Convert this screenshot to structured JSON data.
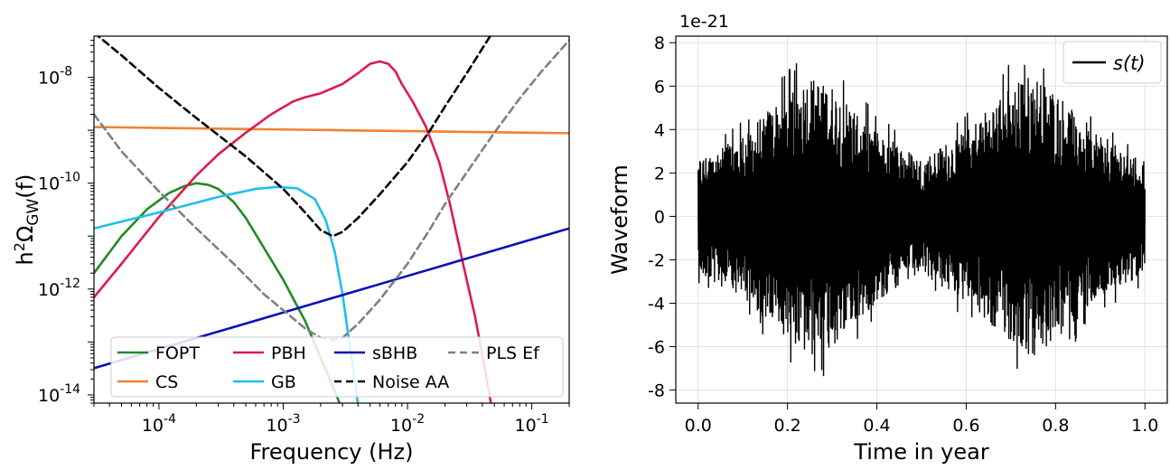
{
  "chart_data": [
    {
      "type": "line",
      "xscale": "log",
      "yscale": "log",
      "xlim": [
        3e-05,
        0.2
      ],
      "ylim": [
        7e-15,
        6e-08
      ],
      "xlabel": "Frequency (Hz)",
      "ylabel_base": "h",
      "ylabel_sup": "2",
      "ylabel_mid": "Ω",
      "ylabel_sub": "GW",
      "ylabel_end": "(f)",
      "grid": false,
      "legend_position": "lower-center",
      "xticks": [
        {
          "value": 0.0001,
          "base": "10",
          "exp": "-4"
        },
        {
          "value": 0.001,
          "base": "10",
          "exp": "-3"
        },
        {
          "value": 0.01,
          "base": "10",
          "exp": "-2"
        },
        {
          "value": 0.1,
          "base": "10",
          "exp": "-1"
        }
      ],
      "yticks": [
        {
          "value": 1e-14,
          "base": "10",
          "exp": "-14"
        },
        {
          "value": 1e-12,
          "base": "10",
          "exp": "-12"
        },
        {
          "value": 1e-10,
          "base": "10",
          "exp": "-10"
        },
        {
          "value": 1e-08,
          "base": "10",
          "exp": "-8"
        }
      ],
      "series": [
        {
          "name": "FOPT",
          "color": "#228b22",
          "dash": "",
          "x": [
            3e-05,
            5e-05,
            8e-05,
            0.00012,
            0.00016,
            0.0002,
            0.00025,
            0.0003,
            0.0004,
            0.0005,
            0.0007,
            0.001,
            0.0015,
            0.002,
            0.0025,
            0.003
          ],
          "y": [
            2e-12,
            1e-11,
            3.2e-11,
            6.5e-11,
            8.8e-11,
            1e-10,
            9.3e-11,
            7.8e-11,
            4.4e-11,
            2.2e-11,
            6e-12,
            1.5e-12,
            2.5e-13,
            5e-14,
            1.5e-14,
            5e-15
          ]
        },
        {
          "name": "CS",
          "color": "#f28130",
          "dash": "",
          "x": [
            3e-05,
            0.2
          ],
          "y": [
            1.15e-09,
            8.8e-10
          ]
        },
        {
          "name": "PBH",
          "color": "#dc1c4b",
          "dash": "",
          "x": [
            3e-05,
            5e-05,
            0.0001,
            0.0002,
            0.0003,
            0.0005,
            0.0008,
            0.0012,
            0.0015,
            0.002,
            0.003,
            0.004,
            0.005,
            0.006,
            0.007,
            0.008,
            0.009,
            0.011,
            0.014,
            0.018,
            0.022,
            0.028,
            0.035,
            0.042,
            0.05
          ],
          "y": [
            7e-13,
            3e-12,
            2.3e-11,
            1.4e-10,
            3.5e-10,
            9e-10,
            2e-09,
            3.5e-09,
            4.2e-09,
            5e-09,
            7.5e-09,
            1.2e-08,
            1.8e-08,
            2e-08,
            1.8e-08,
            1.3e-08,
            7.5e-09,
            3.5e-09,
            1.2e-09,
            2.5e-10,
            4e-11,
            3e-12,
            3e-13,
            3e-14,
            3e-15
          ]
        },
        {
          "name": "GB",
          "color": "#1ebef0",
          "dash": "",
          "x": [
            3e-05,
            0.0001,
            0.0003,
            0.0006,
            0.0009,
            0.0013,
            0.0018,
            0.0022,
            0.0026,
            0.003,
            0.0034,
            0.0038,
            0.0042
          ],
          "y": [
            1.4e-11,
            2.8e-11,
            5.5e-11,
            7.8e-11,
            8.5e-11,
            8e-11,
            5e-11,
            2e-11,
            5e-12,
            8e-13,
            1e-13,
            1.5e-14,
            3e-15
          ]
        },
        {
          "name": "sBHB",
          "color": "#0a10b4",
          "dash": "",
          "x": [
            3e-05,
            0.2
          ],
          "y": [
            3.2e-14,
            1.4e-11
          ]
        },
        {
          "name": "Noise AA",
          "color": "#000000",
          "dash": "8,5",
          "x": [
            3e-05,
            5e-05,
            0.0001,
            0.0002,
            0.0005,
            0.001,
            0.0015,
            0.002,
            0.0025,
            0.003,
            0.004,
            0.006,
            0.01,
            0.015,
            0.02,
            0.03,
            0.04,
            0.05
          ],
          "y": [
            7e-08,
            2.6e-08,
            6.3e-09,
            1.7e-09,
            3.2e-10,
            7.8e-11,
            2.8e-11,
            1.3e-11,
            1e-11,
            1.2e-11,
            2.2e-11,
            6.2e-11,
            2.5e-10,
            9.5e-10,
            2.8e-09,
            1.2e-08,
            3.5e-08,
            8e-08
          ]
        },
        {
          "name": "PLS Ef",
          "color": "#808080",
          "dash": "8,5",
          "x": [
            3e-05,
            5e-05,
            0.0001,
            0.0002,
            0.0004,
            0.0007,
            0.001,
            0.0015,
            0.002,
            0.0025,
            0.003,
            0.004,
            0.006,
            0.01,
            0.015,
            0.02,
            0.03,
            0.05,
            0.08,
            0.12,
            0.2
          ],
          "y": [
            2e-09,
            4e-10,
            7e-11,
            1.4e-11,
            3e-12,
            8e-13,
            4e-13,
            1.8e-13,
            1.2e-13,
            1.1e-13,
            1.2e-13,
            2.2e-13,
            6.3e-13,
            3e-12,
            1.3e-11,
            4e-11,
            1.6e-10,
            9e-10,
            4e-09,
            1.3e-08,
            5e-08
          ]
        }
      ]
    },
    {
      "type": "line",
      "xlabel": "Time in year",
      "ylabel": "Waveform",
      "offset_text": "1e-21",
      "xlim": [
        -0.05,
        1.05
      ],
      "ylim": [
        -8.6,
        8.3
      ],
      "grid": true,
      "legend_position": "top-right",
      "xticks": [
        "0.0",
        "0.2",
        "0.4",
        "0.6",
        "0.8",
        "1.0"
      ],
      "yticks": [
        "-8",
        "-6",
        "-4",
        "-2",
        "0",
        "2",
        "4",
        "6",
        "8"
      ],
      "series": [
        {
          "name": "s(t)",
          "color": "#000000",
          "description_envelope": "amplitude-modulated oscillation, peaks near t=0.25 and t=0.75 (~±7.5), minima near t=0 , 0.5 , 1.0 (~±3)",
          "envelope_t": [
            0.0,
            0.1,
            0.2,
            0.25,
            0.3,
            0.4,
            0.5,
            0.6,
            0.7,
            0.75,
            0.8,
            0.9,
            1.0
          ],
          "envelope_amp": [
            3.0,
            4.3,
            6.5,
            7.4,
            6.8,
            4.5,
            3.0,
            4.5,
            6.8,
            7.4,
            6.5,
            4.3,
            3.0
          ]
        }
      ]
    }
  ]
}
